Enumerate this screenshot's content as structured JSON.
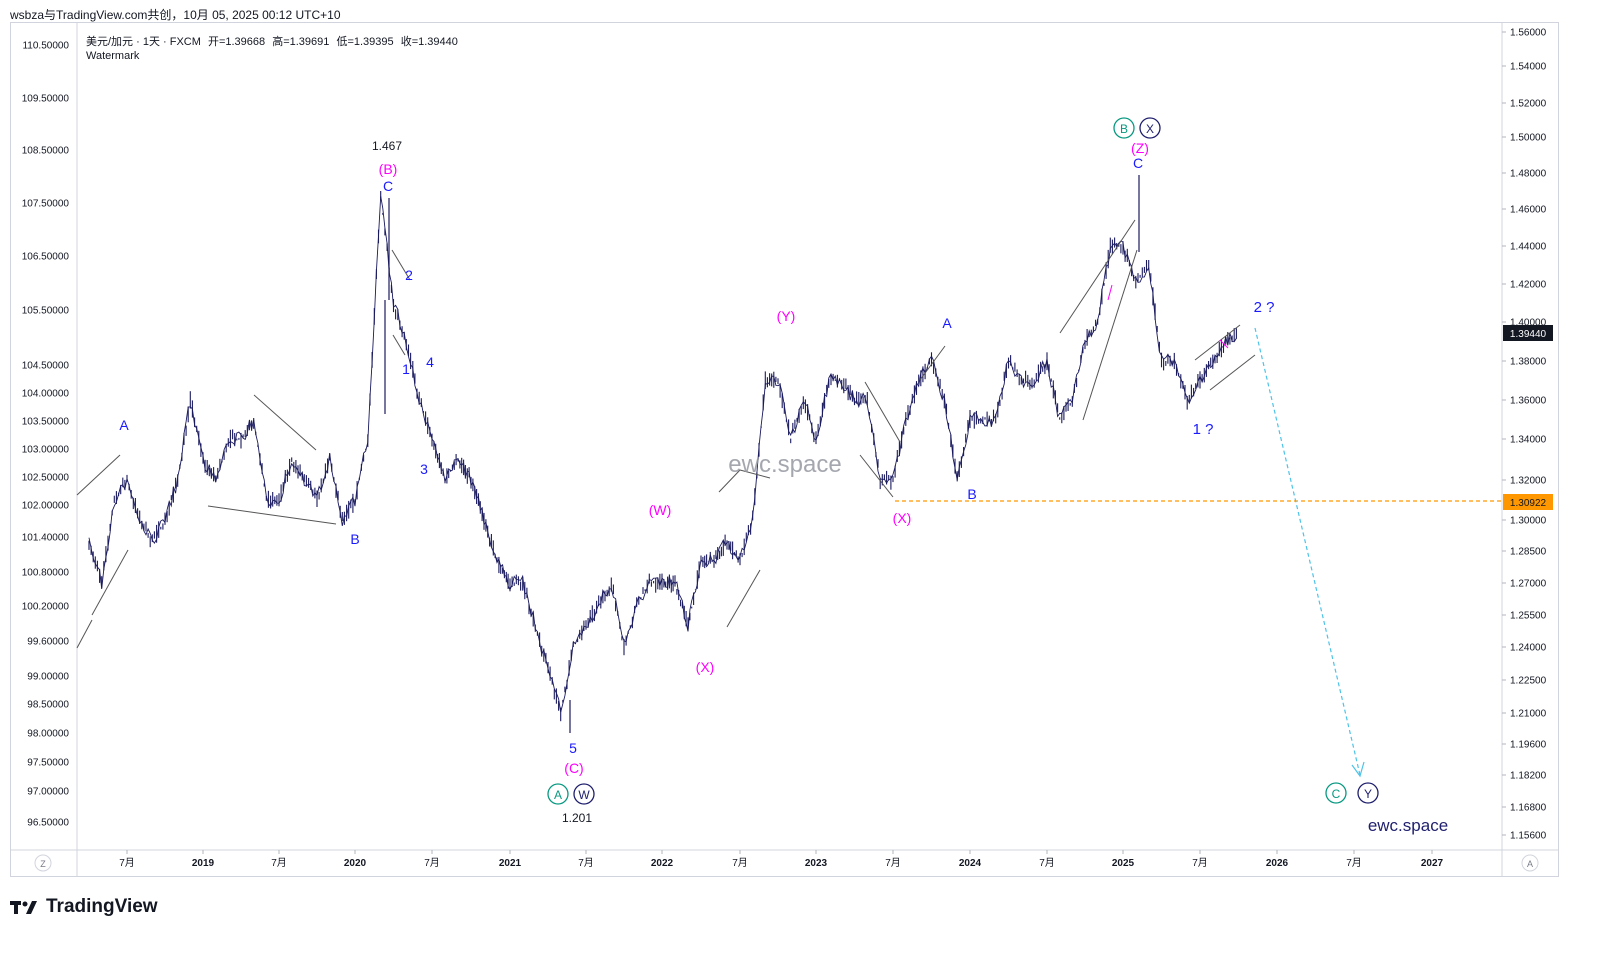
{
  "header": {
    "text": "wsbza与TradingView.com共创，10月 05, 2025 00:12 UTC+10"
  },
  "legend": {
    "symbol": "美元/加元 · 1天 · FXCM",
    "open": "开=1.39668",
    "high": "高=1.39691",
    "low": "低=1.39395",
    "close": "收=1.39440",
    "watermark_label": "Watermark"
  },
  "branding": {
    "watermark_center": "ewc.space",
    "watermark_corner": "ewc.space",
    "tradingview_logo": "TradingView"
  },
  "corner_buttons": {
    "left": "Z",
    "right": "A"
  },
  "price_tags": {
    "current_price": "1.39440",
    "support_price": "1.30922"
  },
  "colors": {
    "candles": "#1a1a5e",
    "wave_blue": "#1a1aff",
    "wave_magenta": "#ff00ff",
    "wave_teal": "#089981",
    "wave_navy": "#1f1f6e",
    "support_line": "#ff9800",
    "projection": "#4dc3e8",
    "price_tag_bg": "#131722",
    "support_tag_bg": "#ff9800"
  },
  "annotations": {
    "high_1467": "1.467",
    "low_1201": "1.201",
    "A1": "A",
    "B1": "B",
    "B_paren": "(B)",
    "C1": "C",
    "n1": "1",
    "n2": "2",
    "n3": "3",
    "n4": "4",
    "n5": "5",
    "C_paren": "(C)",
    "circA": "A",
    "circW": "W",
    "W_paren": "(W)",
    "X_paren1": "(X)",
    "Y_paren": "(Y)",
    "X_paren2": "(X)",
    "A2": "A",
    "B2": "B",
    "circB": "B",
    "circX": "X",
    "Z_paren": "(Z)",
    "C2": "C",
    "one_q": "1 ?",
    "two_q": "2 ?",
    "circC": "C",
    "circY": "Y"
  },
  "chart_data": {
    "type": "line",
    "title": "美元/加元 · 1天 · FXCM",
    "xlabel": "",
    "ylabel": "",
    "x_tick_labels": [
      "7月",
      "2019",
      "7月",
      "2020",
      "7月",
      "2021",
      "7月",
      "2022",
      "7月",
      "2023",
      "7月",
      "2024",
      "7月",
      "2025",
      "7月",
      "2026",
      "7月",
      "2027"
    ],
    "left_axis_ticks": [
      "110.50000",
      "109.50000",
      "108.50000",
      "107.50000",
      "106.50000",
      "105.50000",
      "104.50000",
      "104.00000",
      "103.50000",
      "103.00000",
      "102.50000",
      "102.00000",
      "101.40000",
      "100.80000",
      "100.20000",
      "99.60000",
      "99.00000",
      "98.50000",
      "98.00000",
      "97.50000",
      "97.00000",
      "96.50000"
    ],
    "right_axis_ticks": [
      "1.56000",
      "1.54000",
      "1.52000",
      "1.50000",
      "1.48000",
      "1.46000",
      "1.44000",
      "1.42000",
      "1.40000",
      "1.38000",
      "1.36000",
      "1.34000",
      "1.32000",
      "1.30000",
      "1.28500",
      "1.27000",
      "1.25500",
      "1.24000",
      "1.22500",
      "1.21000",
      "1.19600",
      "1.18200",
      "1.16800",
      "1.15600"
    ],
    "ylim": [
      1.156,
      1.56
    ],
    "grid": false,
    "series": [
      {
        "name": "美元/加元",
        "x": [
          "2018-04",
          "2018-05",
          "2018-06",
          "2018-07",
          "2018-08",
          "2018-09",
          "2018-10",
          "2018-11",
          "2018-12",
          "2019-01",
          "2019-02",
          "2019-03",
          "2019-04",
          "2019-05",
          "2019-06",
          "2019-07",
          "2019-08",
          "2019-09",
          "2019-10",
          "2019-11",
          "2019-12",
          "2020-01",
          "2020-02",
          "2020-03",
          "2020-04",
          "2020-05",
          "2020-06",
          "2020-07",
          "2020-08",
          "2020-09",
          "2020-10",
          "2020-11",
          "2020-12",
          "2021-01",
          "2021-02",
          "2021-03",
          "2021-04",
          "2021-05",
          "2021-06",
          "2021-07",
          "2021-08",
          "2021-09",
          "2021-10",
          "2021-11",
          "2021-12",
          "2022-01",
          "2022-02",
          "2022-03",
          "2022-04",
          "2022-05",
          "2022-06",
          "2022-07",
          "2022-08",
          "2022-09",
          "2022-10",
          "2022-11",
          "2022-12",
          "2023-01",
          "2023-02",
          "2023-03",
          "2023-04",
          "2023-05",
          "2023-06",
          "2023-07",
          "2023-08",
          "2023-09",
          "2023-10",
          "2023-11",
          "2023-12",
          "2024-01",
          "2024-02",
          "2024-03",
          "2024-04",
          "2024-05",
          "2024-06",
          "2024-07",
          "2024-08",
          "2024-09",
          "2024-10",
          "2024-11",
          "2024-12",
          "2025-01",
          "2025-02",
          "2025-03",
          "2025-04",
          "2025-05",
          "2025-06",
          "2025-07",
          "2025-08",
          "2025-09",
          "2025-10"
        ],
        "values": [
          1.29,
          1.27,
          1.31,
          1.32,
          1.3,
          1.29,
          1.3,
          1.32,
          1.36,
          1.33,
          1.32,
          1.34,
          1.34,
          1.35,
          1.31,
          1.31,
          1.33,
          1.32,
          1.31,
          1.33,
          1.3,
          1.31,
          1.34,
          1.467,
          1.41,
          1.39,
          1.36,
          1.34,
          1.32,
          1.33,
          1.32,
          1.3,
          1.28,
          1.27,
          1.27,
          1.25,
          1.23,
          1.21,
          1.24,
          1.25,
          1.26,
          1.27,
          1.24,
          1.26,
          1.27,
          1.27,
          1.27,
          1.25,
          1.28,
          1.28,
          1.29,
          1.28,
          1.3,
          1.37,
          1.37,
          1.34,
          1.36,
          1.34,
          1.37,
          1.37,
          1.36,
          1.36,
          1.32,
          1.32,
          1.35,
          1.37,
          1.38,
          1.36,
          1.32,
          1.35,
          1.35,
          1.35,
          1.38,
          1.37,
          1.37,
          1.38,
          1.35,
          1.36,
          1.39,
          1.4,
          1.44,
          1.44,
          1.42,
          1.43,
          1.38,
          1.38,
          1.36,
          1.37,
          1.38,
          1.39,
          1.394
        ]
      },
      {
        "name": "projection",
        "x": [
          "2025-10",
          "2026-08"
        ],
        "values": [
          1.402,
          1.182
        ]
      }
    ],
    "support_level": 1.30922,
    "current_price": 1.3944,
    "legend_placement": "top-left"
  }
}
